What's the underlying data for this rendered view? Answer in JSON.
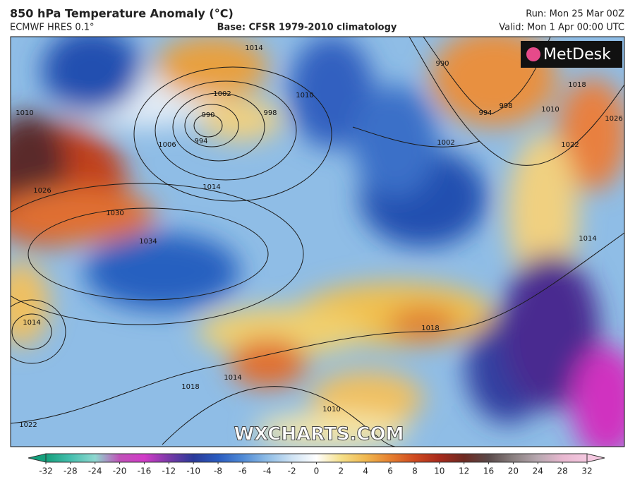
{
  "header": {
    "title": "850 hPa Temperature Anomaly (°C)",
    "model": "ECMWF HRES 0.1°",
    "base": "Base: CFSR 1979-2010 climatology",
    "run": "Run: Mon 25 Mar 00Z",
    "valid": "Valid: Mon 1 Apr 00:00 UTC"
  },
  "logo": "MetDesk",
  "watermark": "WXCHARTS.COM",
  "isobar_labels": [
    "1014",
    "1002",
    "990",
    "994",
    "998",
    "1006",
    "1010",
    "1014",
    "1030",
    "1034",
    "1026",
    "1010",
    "1014",
    "1018",
    "1014",
    "1022",
    "990",
    "994",
    "998",
    "1002",
    "1010",
    "1018",
    "1022",
    "1026",
    "1014",
    "1018",
    "1010"
  ],
  "colorbar": {
    "ticks": [
      -32,
      -28,
      -24,
      -20,
      -16,
      -12,
      -10,
      -8,
      -6,
      -4,
      -2,
      0,
      2,
      4,
      6,
      8,
      10,
      12,
      16,
      20,
      24,
      28,
      32
    ],
    "colors": [
      "#14a07c",
      "#45bfae",
      "#8fd8d0",
      "#c052b8",
      "#d23bc8",
      "#7a3aa8",
      "#2a3a9a",
      "#2a5cc0",
      "#4f8ad6",
      "#8fbde6",
      "#cfe3f4",
      "#ffffff",
      "#f5e08a",
      "#f0b850",
      "#e68030",
      "#d04a20",
      "#a82a1c",
      "#6e2a22",
      "#5a4a4a",
      "#8a8080",
      "#b8a8b0",
      "#e8b8d0",
      "#f4c8e0"
    ]
  }
}
